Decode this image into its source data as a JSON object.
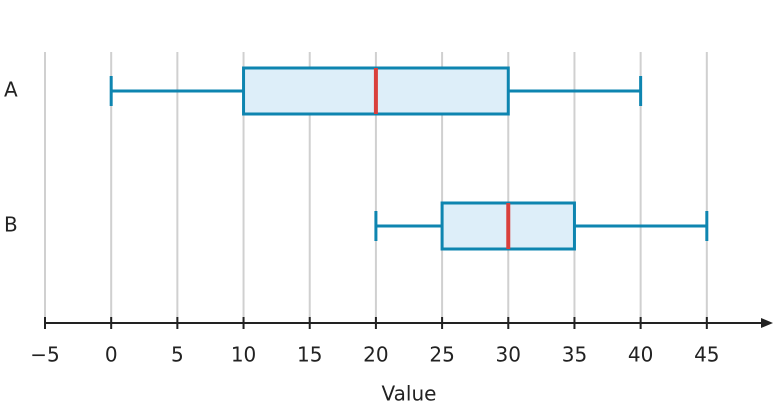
{
  "chart_data": {
    "type": "boxplot",
    "orientation": "horizontal",
    "x_label": "Value",
    "categories": [
      "A",
      "B"
    ],
    "min": [
      0,
      20
    ],
    "q1": [
      10,
      25
    ],
    "median": [
      20,
      30
    ],
    "q3": [
      30,
      35
    ],
    "max": [
      40,
      45
    ],
    "box_fill": "#ddeef9",
    "box_color": "#0e85b0",
    "median_color": "#d9403c",
    "xlim": [
      -5,
      50
    ],
    "xticks": [
      {
        "value": -5,
        "label": "−5"
      },
      0,
      5,
      10,
      15,
      20,
      25,
      30,
      35,
      40,
      45
    ],
    "grid": true
  }
}
